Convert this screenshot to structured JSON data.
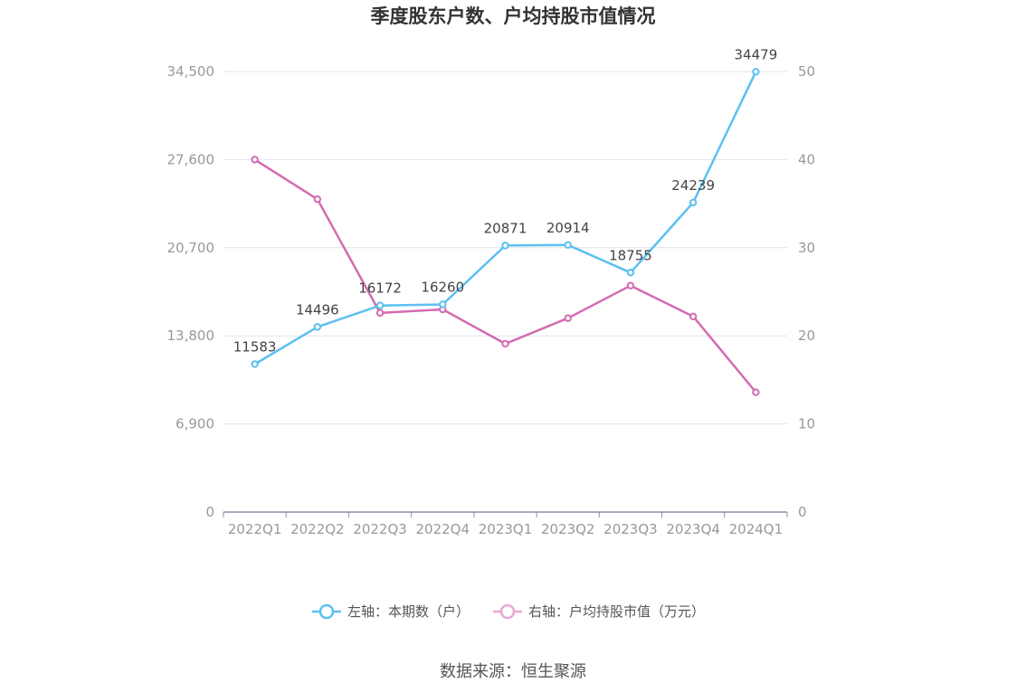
{
  "chart_data": {
    "type": "line",
    "title": "季度股东户数、户均持股市值情况",
    "categories": [
      "2022Q1",
      "2022Q2",
      "2022Q3",
      "2022Q4",
      "2023Q1",
      "2023Q2",
      "2023Q3",
      "2023Q4",
      "2024Q1"
    ],
    "left_axis": {
      "ticks": [
        "0",
        "6,900",
        "13,800",
        "20,700",
        "27,600",
        "34,500"
      ],
      "range": [
        0,
        34500
      ]
    },
    "right_axis": {
      "ticks": [
        "0",
        "10",
        "20",
        "30",
        "40",
        "50"
      ],
      "range": [
        0,
        50
      ]
    },
    "series": [
      {
        "name": "左轴：本期数（户）",
        "axis": "left",
        "color": "#5bc0f0",
        "values": [
          11583,
          14496,
          16172,
          16260,
          20871,
          20914,
          18755,
          24239,
          34479
        ],
        "labels": [
          "11583",
          "14496",
          "16172",
          "16260",
          "20871",
          "20914",
          "18755",
          "24239",
          "34479"
        ]
      },
      {
        "name": "右轴：户均持股市值（万元）",
        "axis": "right",
        "color": "#d46bb0",
        "values": [
          40.0,
          35.5,
          22.6,
          23.0,
          19.1,
          22.0,
          25.7,
          22.2,
          13.6
        ]
      }
    ],
    "grid": true,
    "legend": "bottom"
  },
  "source": "数据来源：恒生聚源"
}
